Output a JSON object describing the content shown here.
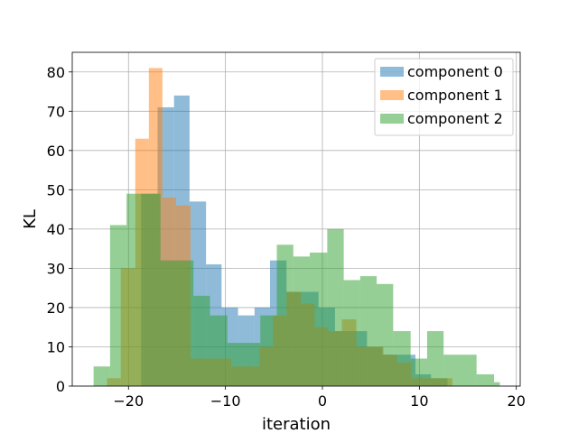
{
  "chart_data": {
    "type": "histogram",
    "xlabel": "iteration",
    "ylabel": "KL",
    "xlim": [
      -25.8,
      20.4
    ],
    "ylim": [
      0,
      85
    ],
    "grid": true,
    "legend_position": "top-right",
    "x_ticks": [
      -20,
      -10,
      0,
      10,
      20
    ],
    "x_tick_labels": [
      "−20",
      "−10",
      "0",
      "10",
      "20"
    ],
    "y_ticks": [
      0,
      10,
      20,
      30,
      40,
      50,
      60,
      70,
      80
    ],
    "series": [
      {
        "name": "component 0",
        "color": "#1f77b4",
        "opacity": 0.5,
        "bins": [
          [
            -20.4,
            -18.7,
            0
          ],
          [
            -18.7,
            -17.0,
            49
          ],
          [
            -17.0,
            -15.3,
            71
          ],
          [
            -15.3,
            -13.7,
            74
          ],
          [
            -13.7,
            -12.0,
            47
          ],
          [
            -12.0,
            -10.4,
            31
          ],
          [
            -10.4,
            -8.7,
            20
          ],
          [
            -8.7,
            -7.0,
            18
          ],
          [
            -7.0,
            -5.4,
            20
          ],
          [
            -5.4,
            -3.7,
            32
          ],
          [
            -3.7,
            -2.1,
            24
          ],
          [
            -2.1,
            -0.4,
            24
          ],
          [
            -0.4,
            1.3,
            20
          ],
          [
            1.3,
            2.9,
            14
          ],
          [
            2.9,
            4.6,
            14
          ],
          [
            4.6,
            6.2,
            10
          ],
          [
            6.2,
            7.9,
            8
          ],
          [
            7.9,
            9.6,
            8
          ],
          [
            9.6,
            11.2,
            3
          ],
          [
            11.2,
            12.9,
            2
          ]
        ]
      },
      {
        "name": "component 1",
        "color": "#ff7f0e",
        "opacity": 0.5,
        "bins": [
          [
            -22.2,
            -20.8,
            2
          ],
          [
            -20.8,
            -19.3,
            30
          ],
          [
            -19.3,
            -17.9,
            63
          ],
          [
            -17.9,
            -16.5,
            81
          ],
          [
            -16.5,
            -15.1,
            48
          ],
          [
            -15.1,
            -13.6,
            46
          ],
          [
            -13.6,
            -12.2,
            7
          ],
          [
            -12.2,
            -10.8,
            7
          ],
          [
            -10.8,
            -9.4,
            7
          ],
          [
            -9.4,
            -7.9,
            5
          ],
          [
            -7.9,
            -6.5,
            5
          ],
          [
            -6.5,
            -5.1,
            10
          ],
          [
            -5.1,
            -3.7,
            18
          ],
          [
            -3.7,
            -2.2,
            24
          ],
          [
            -2.2,
            -0.8,
            21
          ],
          [
            -0.8,
            0.6,
            15
          ],
          [
            0.6,
            2.0,
            14
          ],
          [
            2.0,
            3.5,
            17
          ],
          [
            3.5,
            4.9,
            10
          ],
          [
            4.9,
            6.3,
            10
          ],
          [
            6.3,
            7.7,
            8
          ],
          [
            7.7,
            9.2,
            6
          ],
          [
            9.2,
            10.6,
            2
          ],
          [
            10.6,
            12.0,
            2
          ],
          [
            12.0,
            13.4,
            2
          ]
        ]
      },
      {
        "name": "component 2",
        "color": "#2ca02c",
        "opacity": 0.5,
        "bins": [
          [
            -23.6,
            -21.9,
            5
          ],
          [
            -21.9,
            -20.2,
            41
          ],
          [
            -20.2,
            -18.5,
            49
          ],
          [
            -18.5,
            -16.7,
            49
          ],
          [
            -16.7,
            -15.0,
            32
          ],
          [
            -15.0,
            -13.3,
            32
          ],
          [
            -13.3,
            -11.6,
            23
          ],
          [
            -11.6,
            -9.8,
            18
          ],
          [
            -9.8,
            -8.1,
            11
          ],
          [
            -8.1,
            -6.4,
            11
          ],
          [
            -6.4,
            -4.7,
            18
          ],
          [
            -4.7,
            -3.0,
            36
          ],
          [
            -3.0,
            -1.3,
            33
          ],
          [
            -1.3,
            0.5,
            34
          ],
          [
            0.5,
            2.2,
            40
          ],
          [
            2.2,
            3.9,
            27
          ],
          [
            3.9,
            5.6,
            28
          ],
          [
            5.6,
            7.3,
            26
          ],
          [
            7.3,
            9.1,
            14
          ],
          [
            9.1,
            10.8,
            7
          ],
          [
            10.8,
            12.5,
            14
          ],
          [
            12.5,
            14.2,
            8
          ],
          [
            14.2,
            15.9,
            8
          ],
          [
            15.9,
            17.7,
            3
          ],
          [
            17.7,
            18.3,
            1
          ]
        ]
      }
    ]
  }
}
